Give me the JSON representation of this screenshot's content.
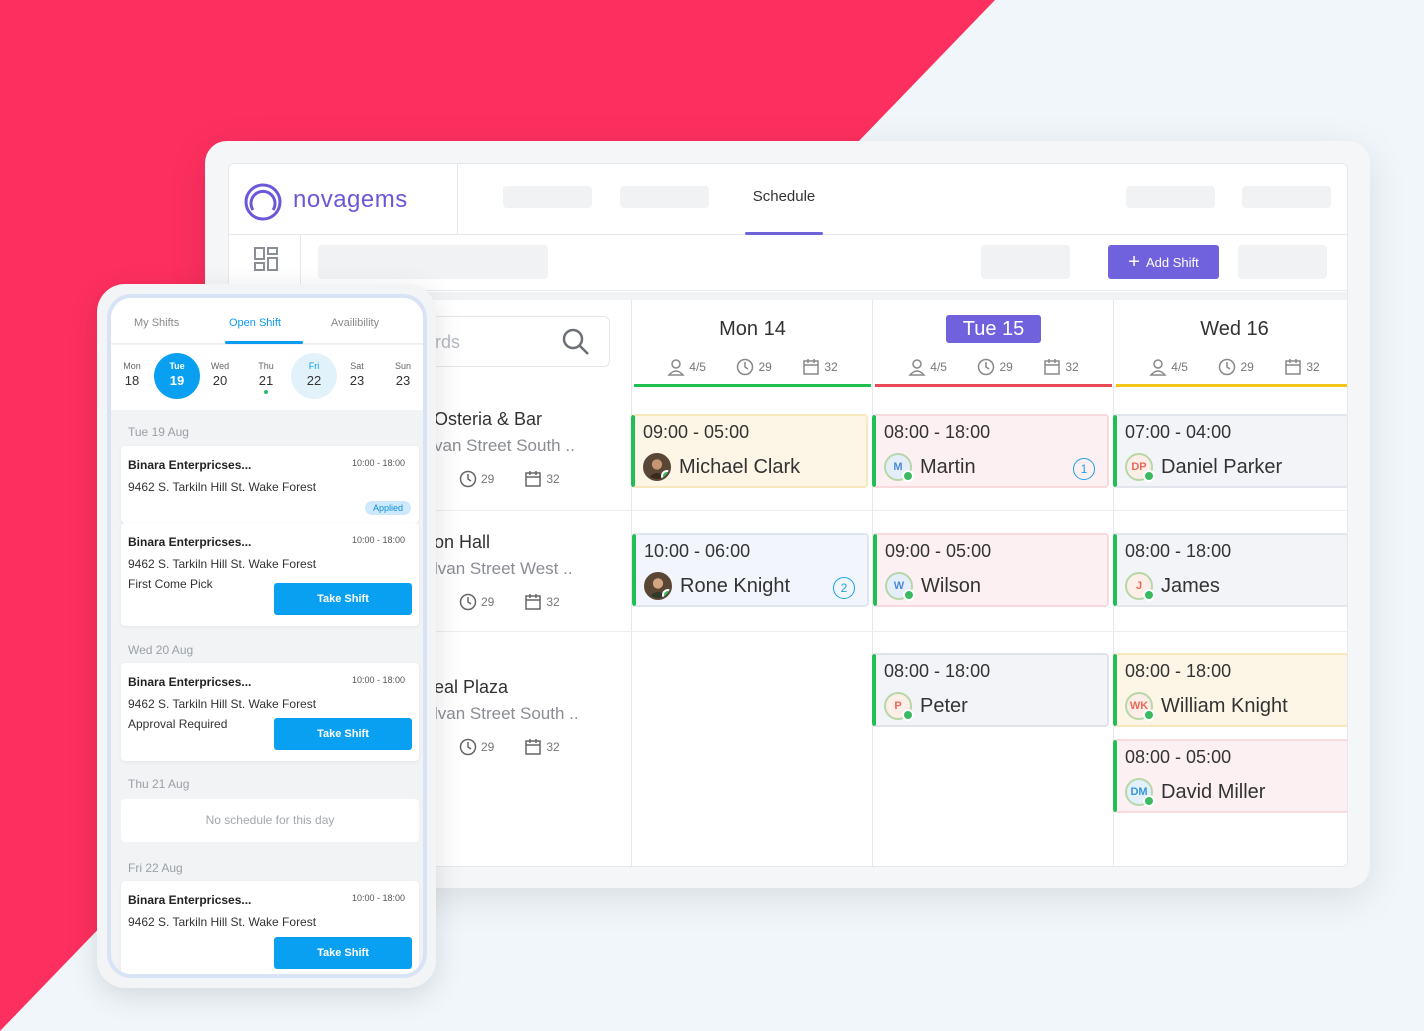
{
  "brand": {
    "name": "novagems",
    "accent": "#6f63d9"
  },
  "nav": {
    "active_tab": "Schedule"
  },
  "toolbar": {
    "add_shift": "Add Shift"
  },
  "search": {
    "placeholder": "rds"
  },
  "days": [
    {
      "title": "Mon 14",
      "members": "4/5",
      "hours": "29",
      "shifts": "32",
      "bar_color": "#1fbf4f",
      "active": false
    },
    {
      "title": "Tue 15",
      "members": "4/5",
      "hours": "29",
      "shifts": "32",
      "bar_color": "#ea4a57",
      "active": true
    },
    {
      "title": "Wed 16",
      "members": "4/5",
      "hours": "29",
      "shifts": "32",
      "bar_color": "#f5c518",
      "active": false
    }
  ],
  "locations": [
    {
      "name": "Osteria & Bar",
      "address": "van Street South ..",
      "hours": "29",
      "shifts": "32"
    },
    {
      "name": "on Hall",
      "address": "lvan Street West ..",
      "hours": "29",
      "shifts": "32"
    },
    {
      "name": "eal Plaza",
      "address": "lvan Street South ..",
      "hours": "29",
      "shifts": "32"
    }
  ],
  "shifts": {
    "r0_mon": {
      "time": "09:00 - 05:00",
      "name": "Michael Clark"
    },
    "r0_tue": {
      "time": "08:00 - 18:00",
      "name": "Martin",
      "initials": "M",
      "count": "1"
    },
    "r0_wed": {
      "time": "07:00 - 04:00",
      "name": "Daniel Parker",
      "initials": "DP"
    },
    "r1_mon": {
      "time": "10:00 - 06:00",
      "name": "Rone Knight",
      "count": "2"
    },
    "r1_tue": {
      "time": "09:00 - 05:00",
      "name": "Wilson",
      "initials": "W"
    },
    "r1_wed": {
      "time": "08:00 - 18:00",
      "name": "James",
      "initials": "J"
    },
    "r2_tue": {
      "time": "08:00 - 18:00",
      "name": "Peter",
      "initials": "P"
    },
    "r2_wed": {
      "time": "08:00 - 18:00",
      "name": "William Knight",
      "initials": "WK"
    },
    "r2_wed2": {
      "time": "08:00 - 05:00",
      "name": "David Miller",
      "initials": "DM"
    }
  },
  "mobile": {
    "tabs": [
      "My Shifts",
      "Open Shift",
      "Availibility"
    ],
    "week": [
      {
        "name": "Mon",
        "date": "18"
      },
      {
        "name": "Tue",
        "date": "19"
      },
      {
        "name": "Wed",
        "date": "20"
      },
      {
        "name": "Thu",
        "date": "21"
      },
      {
        "name": "Fri",
        "date": "22"
      },
      {
        "name": "Sat",
        "date": "23"
      },
      {
        "name": "Sun",
        "date": "23"
      }
    ],
    "sections": {
      "tue": "Tue 19 Aug",
      "wed": "Wed 20 Aug",
      "thu": "Thu 21 Aug",
      "fri": "Fri 22 Aug"
    },
    "cards": [
      {
        "company": "Binara Enterpricses...",
        "time": "10:00 - 18:00",
        "address": "9462 S. Tarkiln Hill St. Wake Forest",
        "badge": "Applied"
      },
      {
        "company": "Binara Enterpricses...",
        "time": "10:00 - 18:00",
        "address": "9462 S. Tarkiln Hill St. Wake Forest",
        "note": "First Come Pick",
        "button": "Take Shift"
      },
      {
        "company": "Binara Enterpricses...",
        "time": "10:00 - 18:00",
        "address": "9462 S. Tarkiln Hill St. Wake Forest",
        "note": "Approval Required",
        "button": "Take Shift"
      },
      {
        "company": "Binara Enterpricses...",
        "time": "10:00 - 18:00",
        "address": "9462 S. Tarkiln Hill St. Wake Forest",
        "button": "Take Shift"
      }
    ],
    "empty_text": "No schedule for this day"
  }
}
